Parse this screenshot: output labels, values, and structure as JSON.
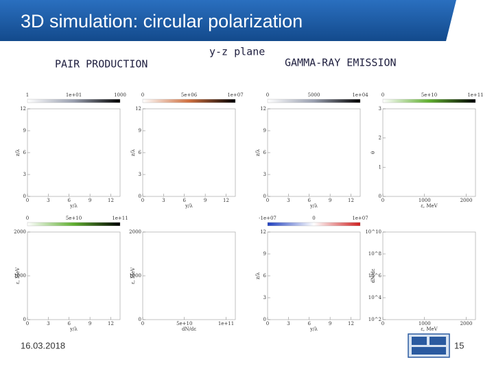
{
  "header": {
    "title": "3D simulation: circular polarization"
  },
  "sections": [
    "PAIR PRODUCTION",
    "y-z plane",
    "GAMMA-RAY EMISSION"
  ],
  "panels": [
    {
      "cbar": [
        "1",
        "1e+01",
        "1000"
      ],
      "gradient": [
        "#ffffff",
        "#9aa0b0",
        "#000000"
      ],
      "yticks": [
        "0",
        "3",
        "6",
        "9",
        "12"
      ],
      "xticks": [
        "0",
        "3",
        "6",
        "9",
        "12"
      ],
      "xlabel": "y/λ",
      "ylabel": "z/λ"
    },
    {
      "cbar": [
        "0",
        "5e+06",
        "1e+07"
      ],
      "gradient": [
        "#ffffff",
        "#d07040",
        "#000000"
      ],
      "yticks": [
        "0",
        "3",
        "6",
        "9",
        "12"
      ],
      "xticks": [
        "0",
        "3",
        "6",
        "9",
        "12"
      ],
      "xlabel": "y/λ",
      "ylabel": "z/λ"
    },
    {
      "cbar": [
        "0",
        "5000",
        "1e+04"
      ],
      "gradient": [
        "#ffffff",
        "#9aa0b0",
        "#000000"
      ],
      "yticks": [
        "0",
        "3",
        "6",
        "9",
        "12"
      ],
      "xticks": [
        "0",
        "3",
        "6",
        "9",
        "12"
      ],
      "xlabel": "y/λ",
      "ylabel": "z/λ"
    },
    {
      "cbar": [
        "0",
        "5e+10",
        "1e+11"
      ],
      "gradient": [
        "#ffffff",
        "#60b030",
        "#000000"
      ],
      "yticks": [
        "0",
        "1",
        "2",
        "3"
      ],
      "xticks": [
        "0",
        "1000",
        "2000"
      ],
      "xlabel": "ε, MeV",
      "ylabel": "θ"
    },
    {
      "cbar": [
        "0",
        "5e+10",
        "1e+11"
      ],
      "gradient": [
        "#ffffff",
        "#60b030",
        "#000000"
      ],
      "yticks": [
        "0",
        "1000",
        "2000"
      ],
      "xticks": [
        "0",
        "3",
        "6",
        "9",
        "12"
      ],
      "xlabel": "y/λ",
      "ylabel": "ε, MeV"
    },
    {
      "cbar": [],
      "gradient": null,
      "yticks": [
        "0",
        "1000",
        "2000"
      ],
      "xticks": [
        "0",
        "5e+10",
        "1e+11"
      ],
      "xlabel": "dN/dε",
      "ylabel": "ε, MeV"
    },
    {
      "cbar": [
        "-1e+07",
        "0",
        "1e+07"
      ],
      "gradient": [
        "#2040c0",
        "#ffffff",
        "#d02020"
      ],
      "yticks": [
        "0",
        "3",
        "6",
        "9",
        "12"
      ],
      "xticks": [
        "0",
        "3",
        "6",
        "9",
        "12"
      ],
      "xlabel": "y/λ",
      "ylabel": "z/λ"
    },
    {
      "cbar": [],
      "gradient": null,
      "yticks": [
        "10^2",
        "10^4",
        "10^6",
        "10^8",
        "10^10"
      ],
      "xticks": [
        "0",
        "1000",
        "2000"
      ],
      "xlabel": "ε, MeV",
      "ylabel": "dN/dε"
    }
  ],
  "footer": {
    "date": "16.03.2018",
    "page": "15"
  }
}
